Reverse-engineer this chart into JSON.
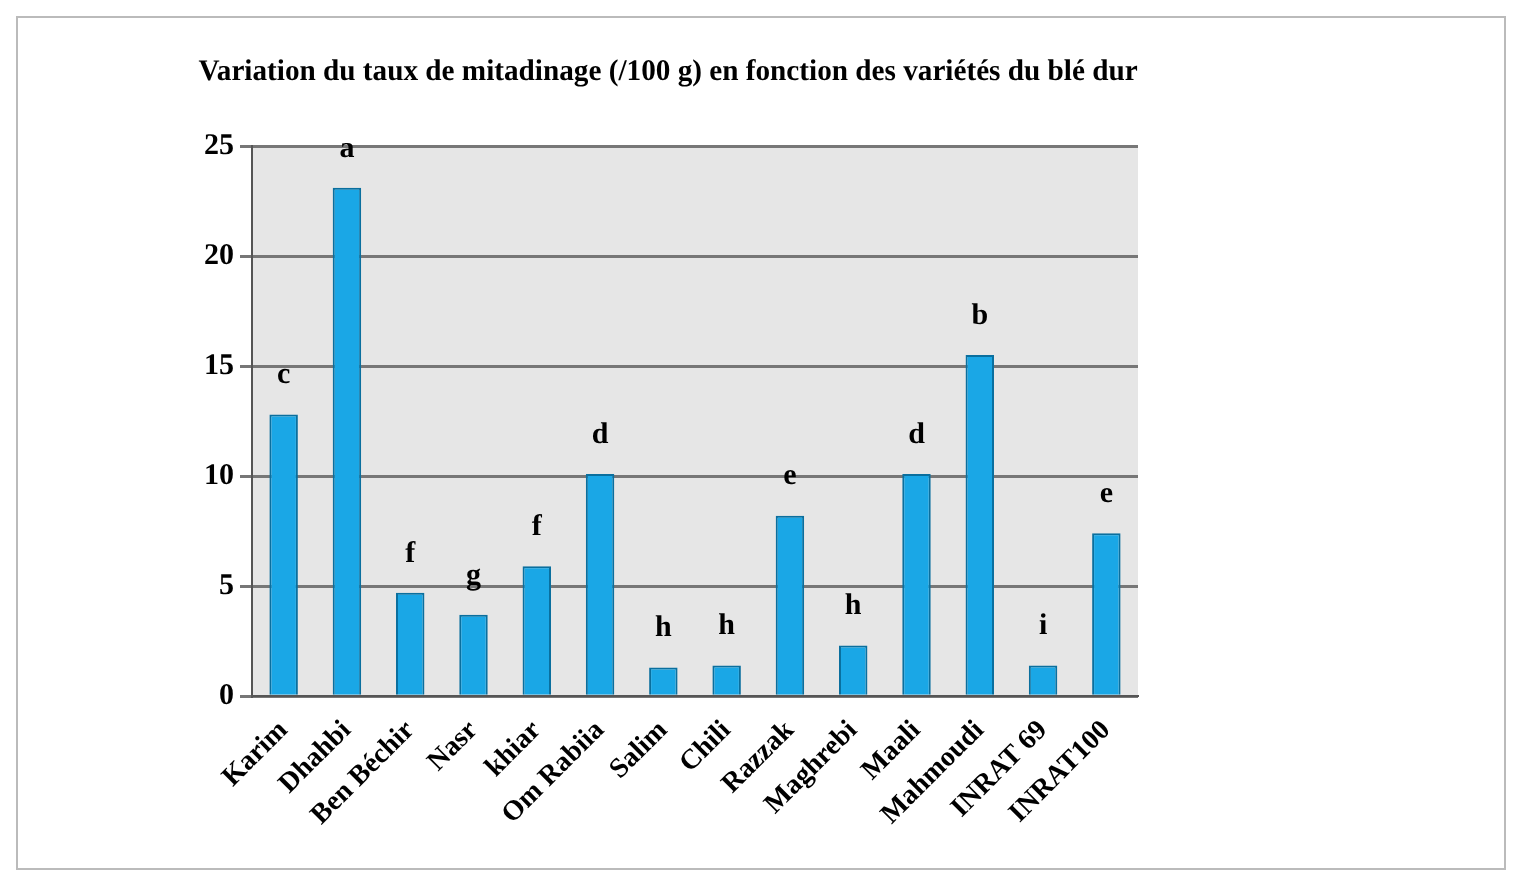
{
  "chart_data": {
    "type": "bar",
    "title": "Variation du taux de mitadinage (/100 g) en fonction des variétés du blé dur",
    "categories": [
      "Karim",
      "Dhahbi",
      "Ben Béchir",
      "Nasr",
      "khiar",
      "Om Rabiia",
      "Salim",
      "Chili",
      "Razzak",
      "Maghrebi",
      "Maali",
      "Mahmoudi",
      "INRAT 69",
      "INRAT100"
    ],
    "values": [
      12.8,
      23.1,
      4.7,
      3.7,
      5.9,
      10.1,
      1.3,
      1.4,
      8.2,
      2.3,
      10.1,
      15.5,
      1.4,
      7.4
    ],
    "value_labels": [
      "c",
      "a",
      "f",
      "g",
      "f",
      "d",
      "h",
      "h",
      "e",
      "h",
      "d",
      "b",
      "i",
      "e"
    ],
    "color": "#1aa7e6",
    "ylim": [
      0,
      25
    ],
    "yticks": [
      0,
      5,
      10,
      15,
      20,
      25
    ],
    "grid": "y",
    "legend": false
  }
}
